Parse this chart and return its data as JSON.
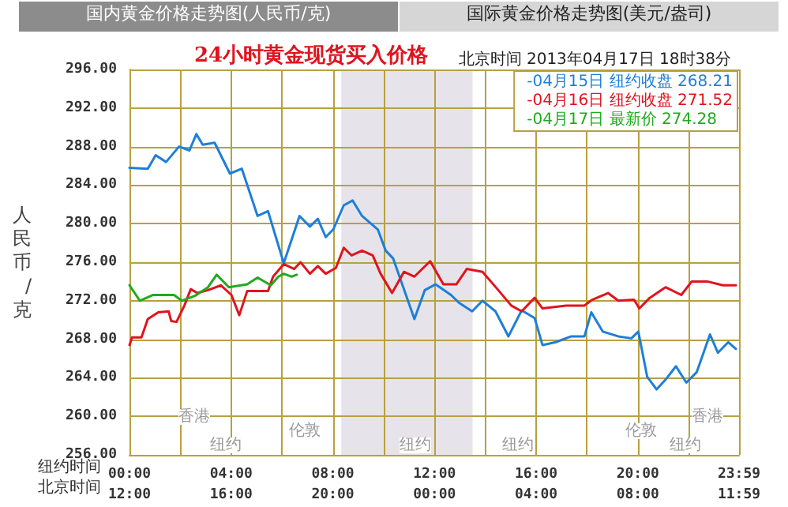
{
  "chart_data": {
    "type": "line",
    "title": "24小时黄金现货买入价格",
    "subtitle": "北京时间 2013年04月17日 18时38分",
    "xlabel": "纽约时间",
    "x2label": "北京时间",
    "ylabel": "人民币/克",
    "annotations": [
      "国内黄金价格走势图(人民币/克)",
      "国际黄金价格走势图(美元/盎司)",
      "香港",
      "伦敦",
      "纽约",
      "纽约",
      "纽约",
      "香港",
      "伦敦",
      "纽约"
    ],
    "series": [
      {
        "name": "-04月15日 纽约收盘 268.21",
        "color": "#1e7fd8",
        "x": [
          0,
          0.72,
          1.03,
          1.44,
          1.95,
          2.36,
          2.63,
          2.88,
          3.35,
          3.95,
          4.42,
          5.04,
          5.45,
          6.07,
          6.69,
          7.1,
          7.41,
          7.72,
          8.02,
          8.43,
          8.78,
          9.15,
          9.77,
          10.08,
          10.37,
          11.21,
          11.62,
          12.04,
          12.65,
          12.96,
          13.48,
          13.89,
          14.4,
          14.91,
          15.43,
          15.94,
          16.25,
          16.77,
          17.38,
          17.9,
          18.17,
          18.62,
          19.23,
          19.75,
          20.02,
          20.37,
          20.74,
          21.09,
          21.5,
          21.91,
          22.32,
          22.84,
          23.15,
          23.56,
          23.86
        ],
        "values": [
          285.8,
          285.7,
          287.1,
          286.4,
          288.0,
          287.6,
          289.3,
          288.2,
          288.4,
          285.2,
          285.7,
          280.8,
          281.3,
          275.9,
          280.8,
          279.7,
          280.5,
          278.6,
          279.4,
          281.9,
          282.4,
          280.8,
          279.4,
          277.2,
          276.4,
          270.1,
          273.1,
          273.7,
          272.6,
          271.8,
          270.9,
          272.0,
          270.9,
          268.3,
          271.0,
          270.2,
          267.4,
          267.7,
          268.3,
          268.3,
          270.8,
          268.8,
          268.3,
          268.1,
          268.8,
          264.1,
          262.8,
          263.8,
          265.2,
          263.5,
          264.6,
          268.5,
          266.6,
          267.7,
          267.0
        ]
      },
      {
        "name": "-04月16日 纽约收盘 271.52",
        "color": "#e0141e",
        "x": [
          0,
          0.1,
          0.47,
          0.72,
          1.13,
          1.54,
          1.64,
          1.85,
          2.16,
          2.41,
          2.67,
          3.09,
          3.6,
          4.01,
          4.32,
          4.63,
          5.45,
          5.65,
          6.07,
          6.48,
          6.73,
          7.1,
          7.41,
          7.72,
          8.12,
          8.43,
          8.74,
          9.15,
          9.57,
          9.88,
          10.33,
          10.8,
          11.21,
          11.83,
          12.35,
          12.86,
          13.27,
          13.89,
          14.51,
          15.02,
          15.43,
          15.94,
          16.25,
          17.18,
          17.9,
          18.21,
          18.83,
          19.23,
          19.85,
          20.06,
          20.47,
          21.09,
          21.71,
          22.12,
          22.73,
          23.35,
          23.86
        ],
        "values": [
          267.4,
          268.2,
          268.2,
          270.1,
          270.8,
          270.9,
          269.9,
          269.8,
          271.5,
          273.2,
          272.8,
          273.1,
          273.6,
          272.6,
          270.5,
          273.0,
          273.0,
          274.5,
          275.8,
          275.3,
          276.0,
          274.8,
          275.6,
          274.8,
          275.4,
          277.5,
          276.7,
          277.2,
          276.7,
          274.8,
          272.8,
          275.0,
          274.5,
          276.1,
          273.7,
          273.7,
          275.3,
          275.0,
          273.1,
          271.5,
          270.9,
          272.3,
          271.2,
          271.5,
          271.5,
          272.1,
          272.8,
          272.0,
          272.1,
          271.2,
          272.3,
          273.4,
          272.6,
          274.0,
          274.0,
          273.6,
          273.6
        ]
      },
      {
        "name": "-04月17日 最新价 274.28",
        "color": "#1faa1f",
        "x": [
          0,
          0.41,
          0.93,
          1.75,
          2.06,
          2.57,
          3.09,
          3.43,
          3.91,
          4.63,
          5.04,
          5.56,
          5.86,
          6.07,
          6.38,
          6.58
        ],
        "values": [
          273.6,
          272.0,
          272.6,
          272.6,
          272.0,
          272.5,
          273.4,
          274.7,
          273.4,
          273.7,
          274.4,
          273.6,
          274.5,
          274.8,
          274.5,
          274.7
        ]
      }
    ],
    "bands": [
      {
        "axis": "x",
        "from": 8.333,
        "to": 13.5,
        "color": "#e6e4ea"
      }
    ],
    "xlim": [
      0,
      23.983
    ],
    "ylim": [
      256,
      296
    ],
    "xticks": [
      {
        "value": 0,
        "label": "00:00"
      },
      {
        "value": 2,
        "label": null
      },
      {
        "value": 4,
        "label": "04:00"
      },
      {
        "value": 6,
        "label": null
      },
      {
        "value": 8,
        "label": "08:00"
      },
      {
        "value": 10,
        "label": null
      },
      {
        "value": 12,
        "label": "12:00"
      },
      {
        "value": 14,
        "label": null
      },
      {
        "value": 16,
        "label": "16:00"
      },
      {
        "value": 18,
        "label": null
      },
      {
        "value": 20,
        "label": "20:00"
      },
      {
        "value": 22,
        "label": null
      },
      {
        "value": 23.983,
        "label": "23:59"
      }
    ],
    "x2lim": [
      "2013-04-17T12:00",
      "2013-04-18T11:59"
    ],
    "x2ticks": [
      {
        "value": "2013-04-17T12:00",
        "label": "12:00"
      },
      {
        "value": "2013-04-17T16:00",
        "label": "16:00"
      },
      {
        "value": "2013-04-17T20:00",
        "label": "20:00"
      },
      {
        "value": "2013-04-18T00:00",
        "label": "00:00"
      },
      {
        "value": "2013-04-18T04:00",
        "label": "04:00"
      },
      {
        "value": "2013-04-18T08:00",
        "label": "08:00"
      },
      {
        "value": "2013-04-18T11:59",
        "label": "11:59"
      }
    ],
    "yticks": [
      {
        "value": 256,
        "label": "256.00"
      },
      {
        "value": 260,
        "label": "260.00"
      },
      {
        "value": 264,
        "label": "264.00"
      },
      {
        "value": 268,
        "label": "268.00"
      },
      {
        "value": 272,
        "label": "272.00"
      },
      {
        "value": 276,
        "label": "276.00"
      },
      {
        "value": 280,
        "label": "280.00"
      },
      {
        "value": 284,
        "label": "284.00"
      },
      {
        "value": 288,
        "label": "288.00"
      },
      {
        "value": 292,
        "label": "292.00"
      },
      {
        "value": 296,
        "label": "296.00"
      }
    ],
    "grid": true,
    "legend": "top right",
    "marker": "none",
    "line_style": "solid"
  }
}
